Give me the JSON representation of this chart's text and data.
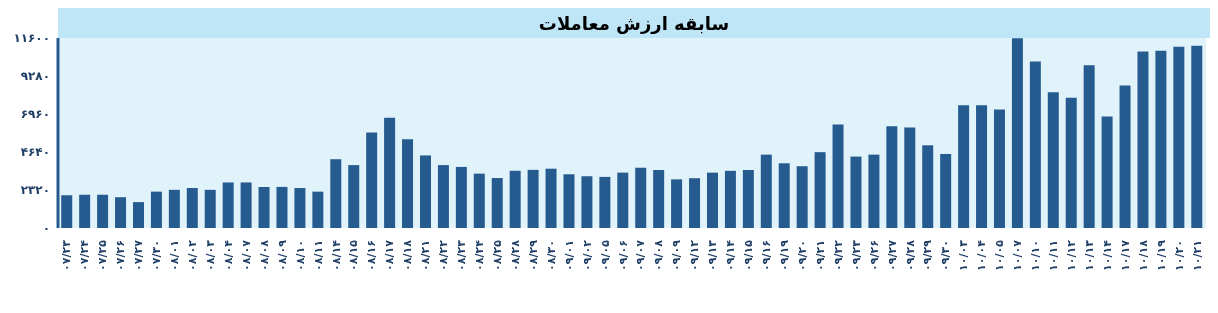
{
  "chart_data": {
    "type": "bar",
    "title": "سابقه ارزش معاملات",
    "categories": [
      "۰۷/۲۳",
      "۰۷/۲۴",
      "۰۷/۲۵",
      "۰۷/۲۶",
      "۰۷/۲۷",
      "۰۷/۳۰",
      "۰۸/۰۱",
      "۰۸/۰۲",
      "۰۸/۰۳",
      "۰۸/۰۴",
      "۰۸/۰۷",
      "۰۸/۰۸",
      "۰۸/۰۹",
      "۰۸/۱۰",
      "۰۸/۱۱",
      "۰۸/۱۴",
      "۰۸/۱۵",
      "۰۸/۱۶",
      "۰۸/۱۷",
      "۰۸/۱۸",
      "۰۸/۲۱",
      "۰۸/۲۲",
      "۰۸/۲۳",
      "۰۸/۲۴",
      "۰۸/۲۵",
      "۰۸/۲۸",
      "۰۸/۲۹",
      "۰۸/۳۰",
      "۰۹/۰۱",
      "۰۹/۰۲",
      "۰۹/۰۵",
      "۰۹/۰۶",
      "۰۹/۰۷",
      "۰۹/۰۸",
      "۰۹/۰۹",
      "۰۹/۱۲",
      "۰۹/۱۳",
      "۰۹/۱۴",
      "۰۹/۱۵",
      "۰۹/۱۶",
      "۰۹/۱۹",
      "۰۹/۲۰",
      "۰۹/۲۱",
      "۰۹/۲۲",
      "۰۹/۲۳",
      "۰۹/۲۶",
      "۰۹/۲۷",
      "۰۹/۲۸",
      "۰۹/۲۹",
      "۰۹/۳۰",
      "۱۰/۰۳",
      "۱۰/۰۴",
      "۱۰/۰۵",
      "۱۰/۰۷",
      "۱۰/۱۰",
      "۱۰/۱۱",
      "۱۰/۱۲",
      "۱۰/۱۳",
      "۱۰/۱۴",
      "۱۰/۱۷",
      "۱۰/۱۸",
      "۱۰/۱۹",
      "۱۰/۲۰",
      "۱۰/۲۱"
    ],
    "values": [
      2000,
      2030,
      2030,
      1880,
      1580,
      2220,
      2330,
      2440,
      2330,
      2780,
      2780,
      2510,
      2510,
      2440,
      2220,
      4200,
      3840,
      5830,
      6730,
      5420,
      4430,
      3840,
      3730,
      3320,
      3050,
      3500,
      3550,
      3620,
      3280,
      3160,
      3120,
      3380,
      3680,
      3540,
      2970,
      3040,
      3380,
      3490,
      3540,
      4480,
      3950,
      3770,
      4630,
      6320,
      4360,
      4480,
      6210,
      6140,
      5050,
      4520,
      7490,
      7490,
      7240,
      11580,
      10160,
      8290,
      7950,
      9930,
      6800,
      8700,
      10780,
      10820,
      11070,
      11120
    ],
    "color": "#265b8f",
    "ylim": [
      0,
      11600
    ],
    "yticks": [
      {
        "value": 0,
        "label": "۰"
      },
      {
        "value": 2320,
        "label": "۲۳۲۰"
      },
      {
        "value": 4640,
        "label": "۴۶۴۰"
      },
      {
        "value": 6960,
        "label": "۶۹۶۰"
      },
      {
        "value": 9280,
        "label": "۹۲۸۰"
      },
      {
        "value": 11600,
        "label": "۱۱۶۰۰"
      }
    ]
  }
}
